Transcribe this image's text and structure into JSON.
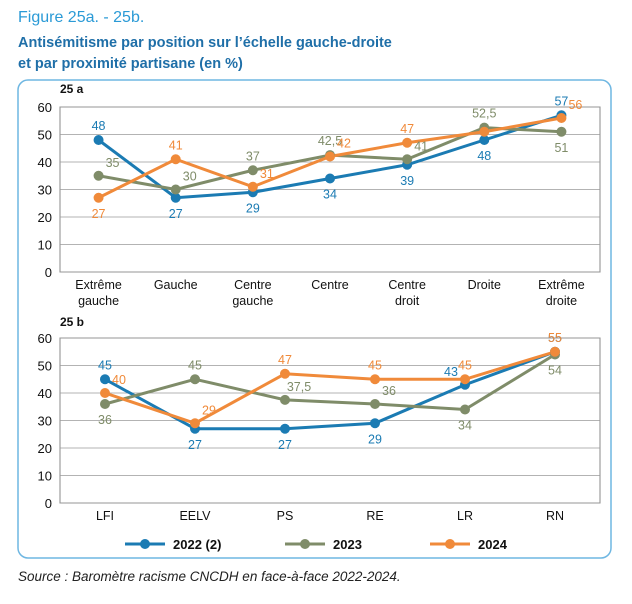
{
  "figure_label": "Figure 25a. - 25b.",
  "title": [
    "Antisémitisme par position sur l’échelle gauche-droite",
    "et par proximité partisane (en %)"
  ],
  "source": "Source : Baromètre racisme CNCDH en face-à-face 2022-2024.",
  "chart_data": [
    {
      "type": "line",
      "title": "25 a",
      "categories": [
        "Extrême gauche",
        "Gauche",
        "Centre gauche",
        "Centre",
        "Centre droit",
        "Droite",
        "Extrême droite"
      ],
      "series": [
        {
          "name": "2022 (2)",
          "color": "#1b7bb3",
          "values": [
            48,
            27,
            29,
            34,
            39,
            48,
            57
          ]
        },
        {
          "name": "2023",
          "color": "#7f8c69",
          "values": [
            35,
            30,
            37,
            42.5,
            41,
            52.5,
            51
          ],
          "value_labels": [
            "35",
            "30",
            "37",
            "42,5",
            "41",
            "52,5",
            "51"
          ]
        },
        {
          "name": "2024",
          "color": "#f08a3a",
          "values": [
            27,
            41,
            31,
            42,
            47,
            51,
            56
          ],
          "value_labels": [
            "27",
            "41",
            "31",
            "42",
            "47",
            null,
            "56"
          ]
        }
      ],
      "ylim": [
        0,
        60
      ],
      "yticks": [
        0,
        10,
        20,
        30,
        40,
        50,
        60
      ],
      "grid": true
    },
    {
      "type": "line",
      "title": "25 b",
      "categories": [
        "LFI",
        "EELV",
        "PS",
        "RE",
        "LR",
        "RN"
      ],
      "series": [
        {
          "name": "2022 (2)",
          "color": "#1b7bb3",
          "values": [
            45,
            27,
            27,
            29,
            43,
            55
          ]
        },
        {
          "name": "2023",
          "color": "#7f8c69",
          "values": [
            36,
            45,
            37.5,
            36,
            34,
            54
          ],
          "value_labels": [
            "36",
            "45",
            "37,5",
            "36",
            "34",
            "54"
          ]
        },
        {
          "name": "2024",
          "color": "#f08a3a",
          "values": [
            40,
            29,
            47,
            45,
            45,
            55
          ]
        }
      ],
      "ylim": [
        0,
        60
      ],
      "yticks": [
        0,
        10,
        20,
        30,
        40,
        50,
        60
      ],
      "grid": true
    }
  ]
}
